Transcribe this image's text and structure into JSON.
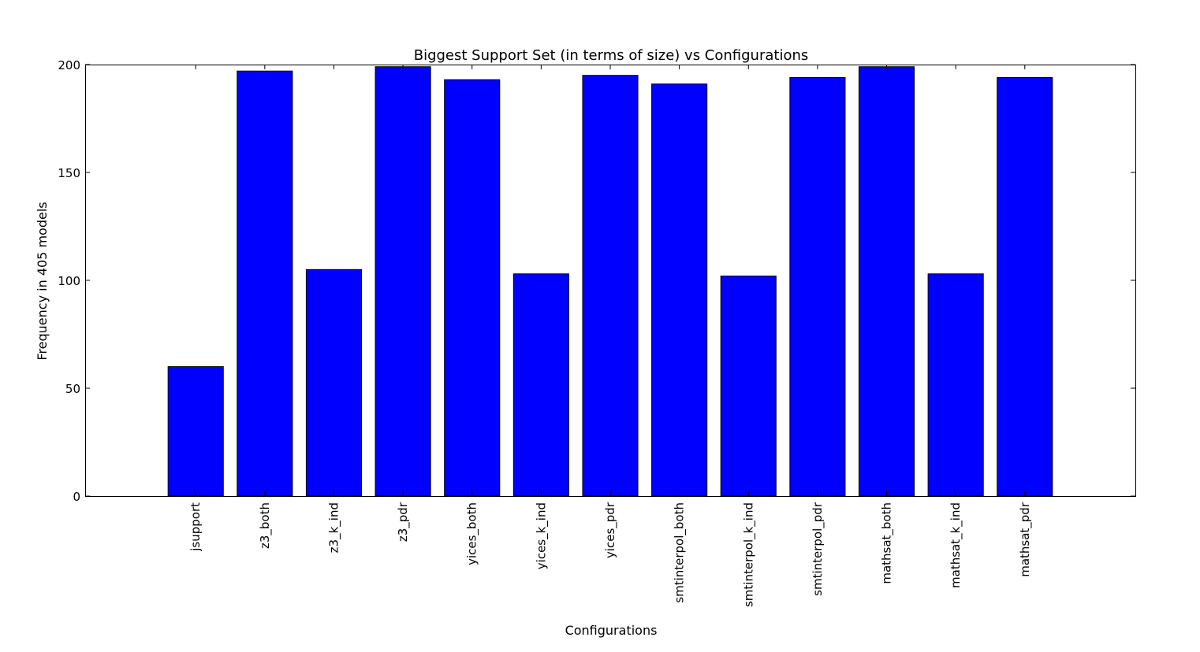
{
  "chart_data": {
    "type": "bar",
    "title": "Biggest Support Set (in terms of size) vs Configurations",
    "xlabel": "Configurations",
    "ylabel": "Frequency in 405 models",
    "categories": [
      "jsupport",
      "z3_both",
      "z3_k_ind",
      "z3_pdr",
      "yices_both",
      "yices_k_ind",
      "yices_pdr",
      "smtinterpol_both",
      "smtinterpol_k_ind",
      "smtinterpol_pdr",
      "mathsat_both",
      "mathsat_k_ind",
      "mathsat_pdr"
    ],
    "values": [
      60,
      197,
      105,
      199,
      193,
      103,
      195,
      191,
      102,
      194,
      199,
      103,
      194
    ],
    "ylim": [
      0,
      200
    ],
    "yticks": [
      0,
      50,
      100,
      150,
      200
    ],
    "bar_color": "#0000ff",
    "edge_color": "#000000",
    "grid": false,
    "legend": false
  }
}
